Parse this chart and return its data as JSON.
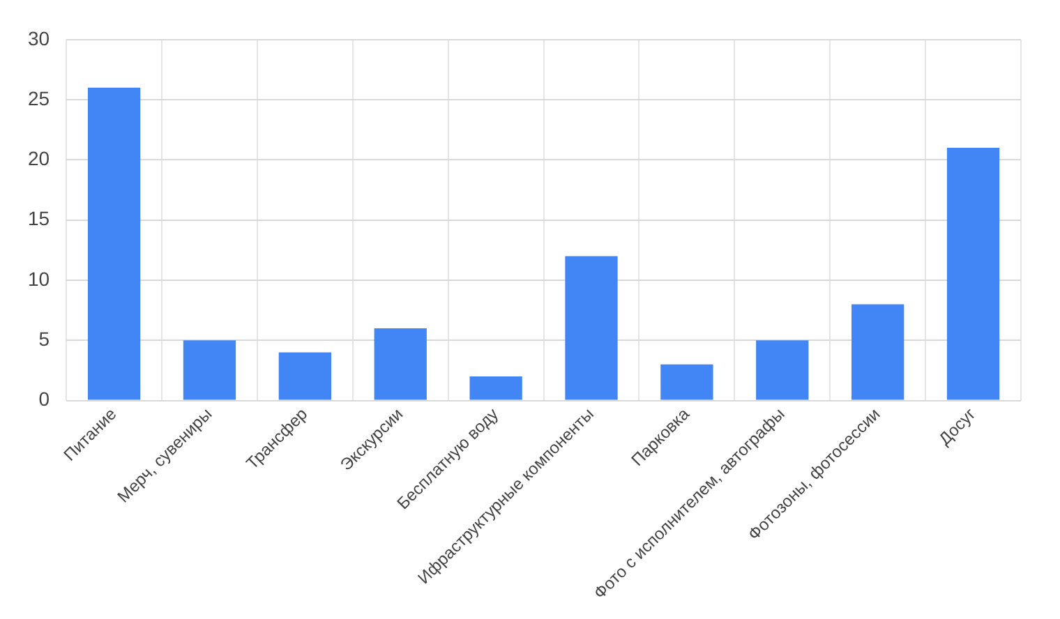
{
  "chart_data": {
    "type": "bar",
    "categories": [
      "Питание",
      "Мерч, сувениры",
      "Трансфер",
      "Экскурсии",
      "Бесплатную воду",
      "Ифраструктурные компоненты",
      "Парковка",
      "Фото с исполнителем, автографы",
      "Фотозоны, фотосессии",
      "Досуг"
    ],
    "values": [
      26,
      5,
      4,
      6,
      2,
      12,
      3,
      5,
      8,
      21
    ],
    "color": "#4285f4",
    "ylim": [
      0,
      30
    ],
    "yticks": [
      0,
      5,
      10,
      15,
      20,
      25,
      30
    ],
    "grid": true,
    "legend": false
  }
}
